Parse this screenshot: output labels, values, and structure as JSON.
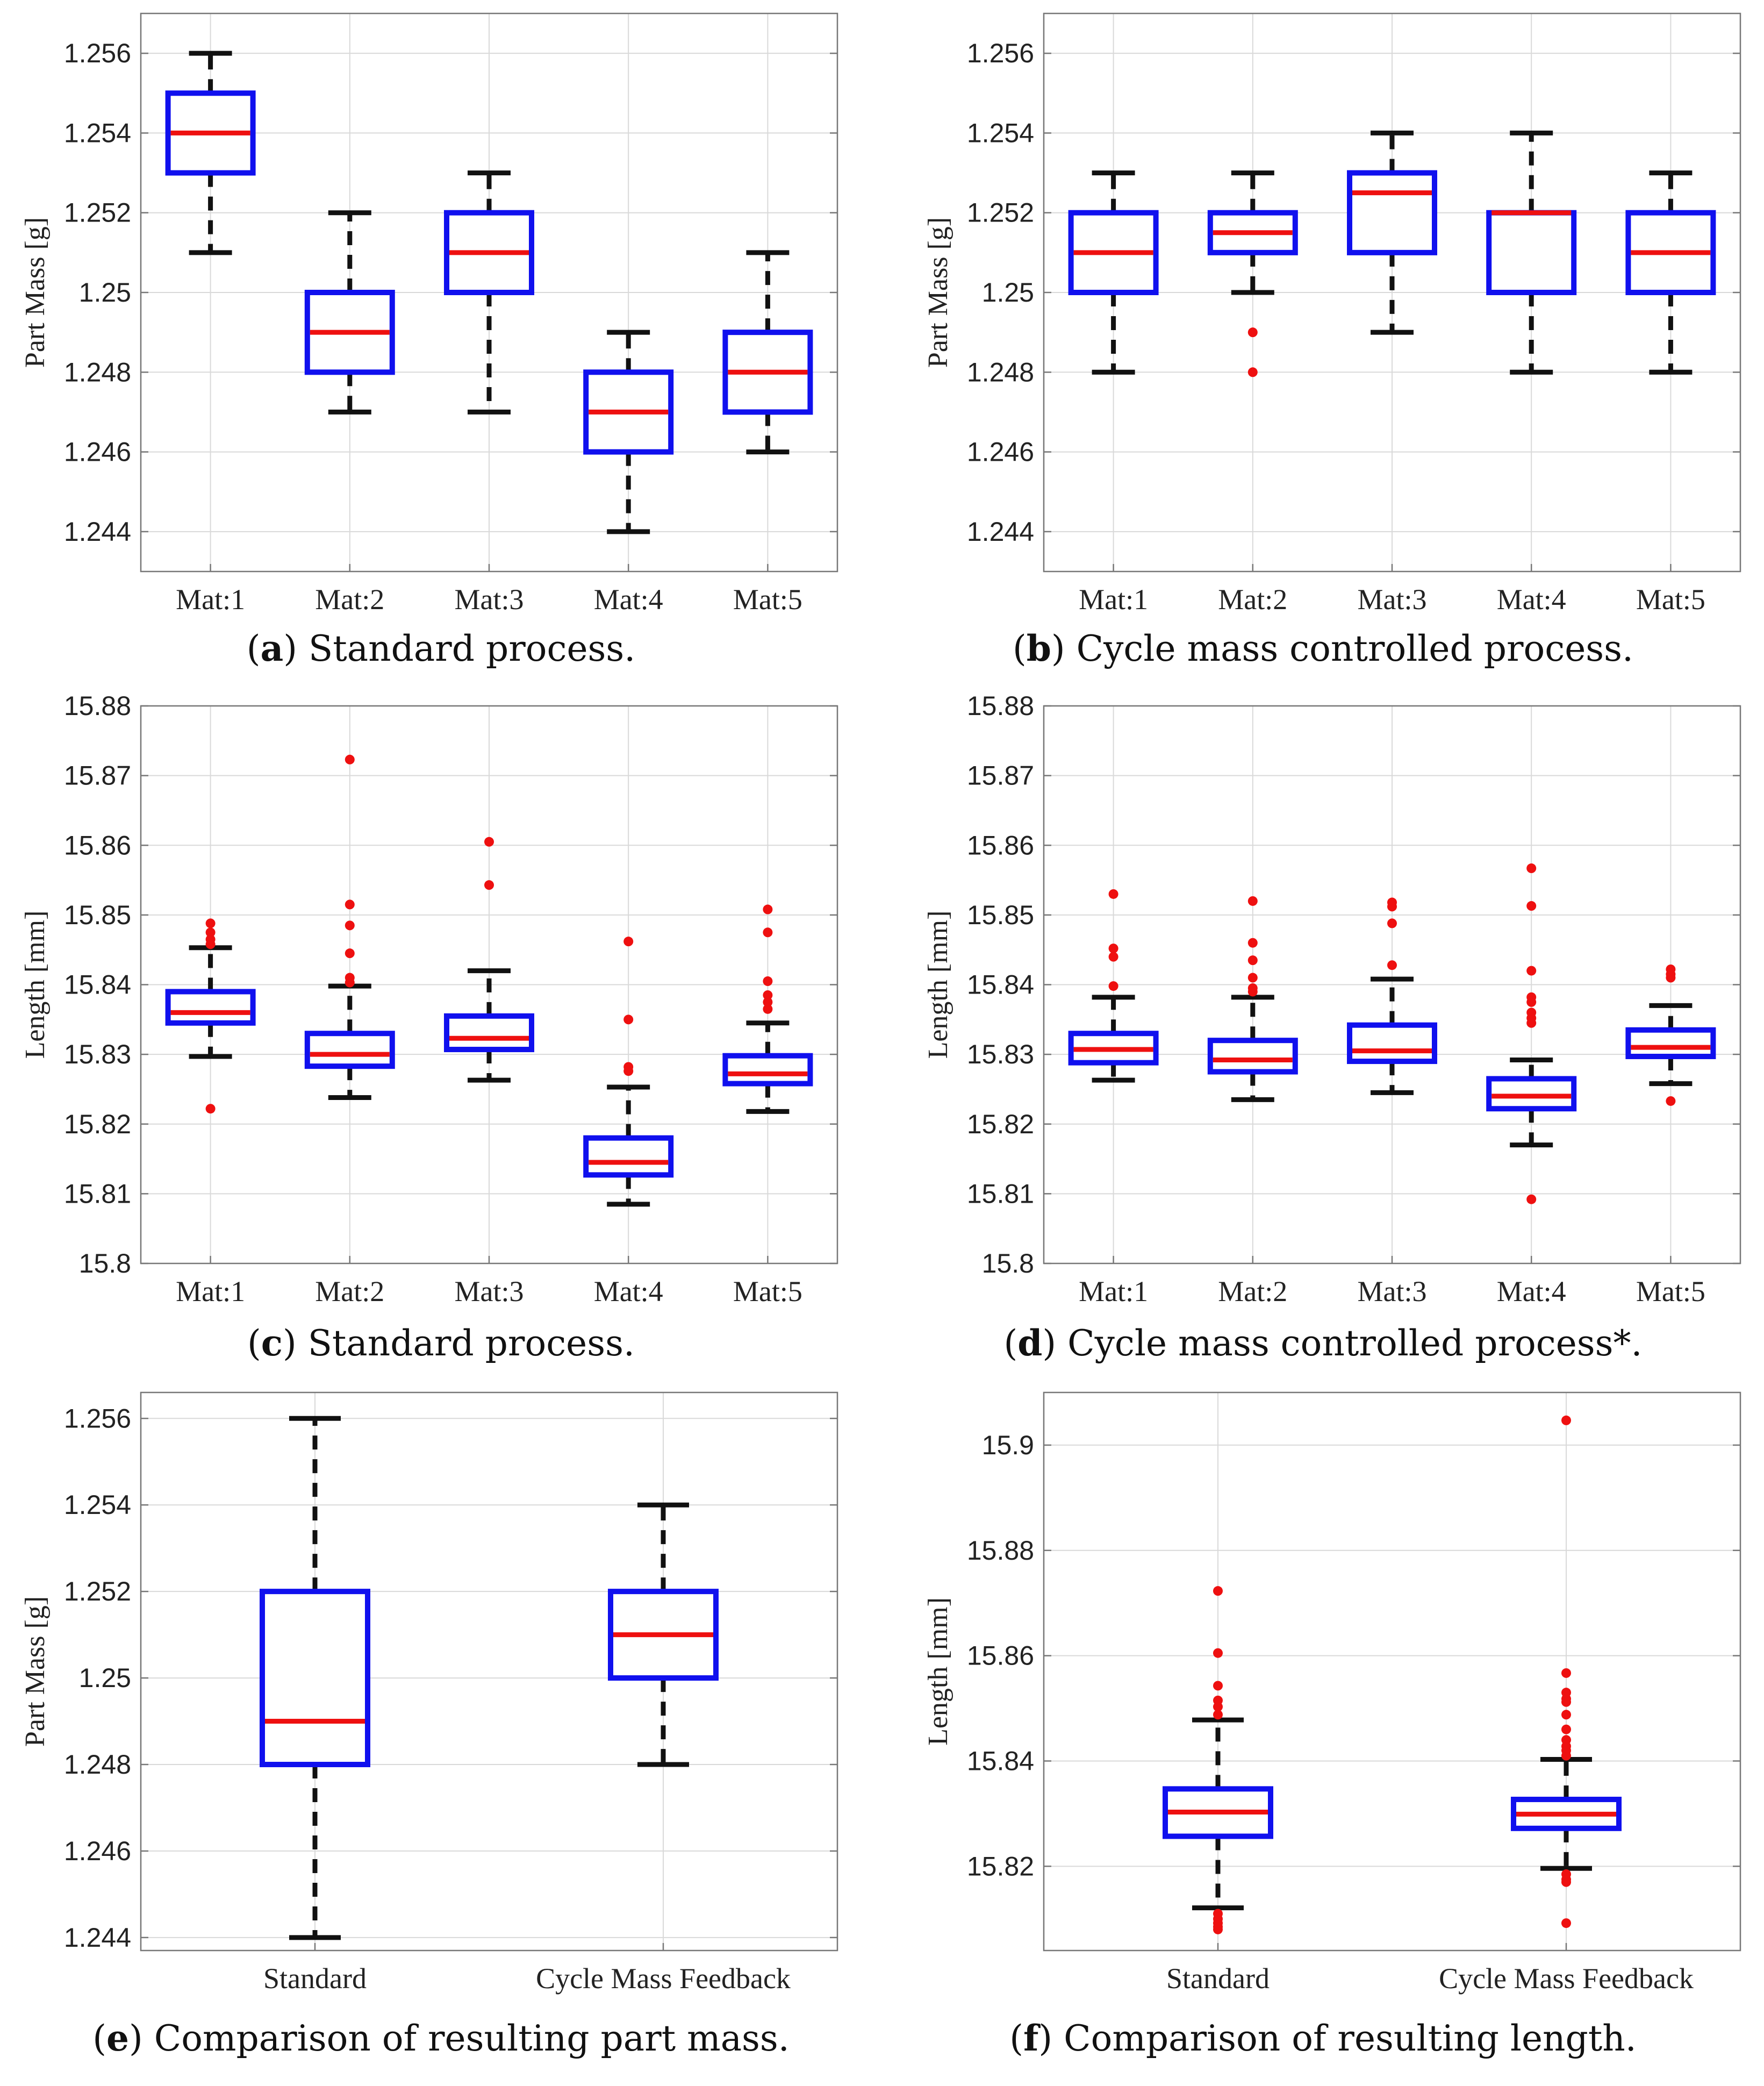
{
  "colors": {
    "box": "#1010ee",
    "median": "#ee1010",
    "whisker": "#111111",
    "outlier": "#ee1010",
    "grid": "#d9d9d9",
    "axes": "#777777"
  },
  "chart_data": [
    {
      "id": "a",
      "type": "boxplot",
      "caption_letter": "a",
      "caption_text": " Standard process.",
      "ylabel": "Part Mass [g]",
      "ylim": [
        1.243,
        1.257
      ],
      "yticks": [
        1.244,
        1.246,
        1.248,
        1.25,
        1.252,
        1.254,
        1.256
      ],
      "ytick_labels": [
        "1.244",
        "1.246",
        "1.248",
        "1.25",
        "1.252",
        "1.254",
        "1.256"
      ],
      "categories": [
        "Mat:1",
        "Mat:2",
        "Mat:3",
        "Mat:4",
        "Mat:5"
      ],
      "boxes": [
        {
          "whisker_low": 1.251,
          "q1": 1.253,
          "median": 1.254,
          "q3": 1.255,
          "whisker_high": 1.256,
          "outliers": []
        },
        {
          "whisker_low": 1.247,
          "q1": 1.248,
          "median": 1.249,
          "q3": 1.25,
          "whisker_high": 1.252,
          "outliers": []
        },
        {
          "whisker_low": 1.247,
          "q1": 1.25,
          "median": 1.251,
          "q3": 1.252,
          "whisker_high": 1.253,
          "outliers": []
        },
        {
          "whisker_low": 1.244,
          "q1": 1.246,
          "median": 1.247,
          "q3": 1.248,
          "whisker_high": 1.249,
          "outliers": []
        },
        {
          "whisker_low": 1.246,
          "q1": 1.247,
          "median": 1.248,
          "q3": 1.249,
          "whisker_high": 1.251,
          "outliers": []
        }
      ]
    },
    {
      "id": "b",
      "type": "boxplot",
      "caption_letter": "b",
      "caption_text": " Cycle mass controlled process.",
      "ylabel": "Part Mass [g]",
      "ylim": [
        1.243,
        1.257
      ],
      "yticks": [
        1.244,
        1.246,
        1.248,
        1.25,
        1.252,
        1.254,
        1.256
      ],
      "ytick_labels": [
        "1.244",
        "1.246",
        "1.248",
        "1.25",
        "1.252",
        "1.254",
        "1.256"
      ],
      "categories": [
        "Mat:1",
        "Mat:2",
        "Mat:3",
        "Mat:4",
        "Mat:5"
      ],
      "boxes": [
        {
          "whisker_low": 1.248,
          "q1": 1.25,
          "median": 1.251,
          "q3": 1.252,
          "whisker_high": 1.253,
          "outliers": []
        },
        {
          "whisker_low": 1.25,
          "q1": 1.251,
          "median": 1.2515,
          "q3": 1.252,
          "whisker_high": 1.253,
          "outliers": [
            1.249,
            1.248
          ]
        },
        {
          "whisker_low": 1.249,
          "q1": 1.251,
          "median": 1.2525,
          "q3": 1.253,
          "whisker_high": 1.254,
          "outliers": []
        },
        {
          "whisker_low": 1.248,
          "q1": 1.25,
          "median": 1.252,
          "q3": 1.252,
          "whisker_high": 1.254,
          "outliers": []
        },
        {
          "whisker_low": 1.248,
          "q1": 1.25,
          "median": 1.251,
          "q3": 1.252,
          "whisker_high": 1.253,
          "outliers": []
        }
      ]
    },
    {
      "id": "c",
      "type": "boxplot",
      "caption_letter": "c",
      "caption_text": " Standard process.",
      "ylabel": "Length [mm]",
      "ylim": [
        15.8,
        15.88
      ],
      "yticks": [
        15.8,
        15.81,
        15.82,
        15.83,
        15.84,
        15.85,
        15.86,
        15.87,
        15.88
      ],
      "ytick_labels": [
        "15.8",
        "15.81",
        "15.82",
        "15.83",
        "15.84",
        "15.85",
        "15.86",
        "15.87",
        "15.88"
      ],
      "categories": [
        "Mat:1",
        "Mat:2",
        "Mat:3",
        "Mat:4",
        "Mat:5"
      ],
      "boxes": [
        {
          "whisker_low": 15.8297,
          "q1": 15.8345,
          "median": 15.836,
          "q3": 15.839,
          "whisker_high": 15.8453,
          "outliers": [
            15.8488,
            15.8475,
            15.8465,
            15.8458,
            15.8222
          ]
        },
        {
          "whisker_low": 15.8238,
          "q1": 15.8283,
          "median": 15.83,
          "q3": 15.833,
          "whisker_high": 15.8398,
          "outliers": [
            15.8723,
            15.8515,
            15.8485,
            15.8445,
            15.841,
            15.8403
          ]
        },
        {
          "whisker_low": 15.8263,
          "q1": 15.8307,
          "median": 15.8323,
          "q3": 15.8355,
          "whisker_high": 15.842,
          "outliers": [
            15.8605,
            15.8543
          ]
        },
        {
          "whisker_low": 15.8085,
          "q1": 15.8127,
          "median": 15.8145,
          "q3": 15.818,
          "whisker_high": 15.8253,
          "outliers": [
            15.8462,
            15.835,
            15.8282,
            15.8276
          ]
        },
        {
          "whisker_low": 15.8218,
          "q1": 15.8258,
          "median": 15.8272,
          "q3": 15.8298,
          "whisker_high": 15.8345,
          "outliers": [
            15.8508,
            15.8475,
            15.8405,
            15.8385,
            15.8375,
            15.8365
          ]
        }
      ]
    },
    {
      "id": "d",
      "type": "boxplot",
      "caption_letter": "d",
      "caption_text": " Cycle mass controlled process*.",
      "ylabel": "Length [mm]",
      "ylim": [
        15.8,
        15.88
      ],
      "yticks": [
        15.8,
        15.81,
        15.82,
        15.83,
        15.84,
        15.85,
        15.86,
        15.87,
        15.88
      ],
      "ytick_labels": [
        "15.8",
        "15.81",
        "15.82",
        "15.83",
        "15.84",
        "15.85",
        "15.86",
        "15.87",
        "15.88"
      ],
      "categories": [
        "Mat:1",
        "Mat:2",
        "Mat:3",
        "Mat:4",
        "Mat:5"
      ],
      "boxes": [
        {
          "whisker_low": 15.8263,
          "q1": 15.8288,
          "median": 15.8307,
          "q3": 15.833,
          "whisker_high": 15.8382,
          "outliers": [
            15.853,
            15.8452,
            15.844,
            15.8398
          ]
        },
        {
          "whisker_low": 15.8235,
          "q1": 15.8275,
          "median": 15.8292,
          "q3": 15.832,
          "whisker_high": 15.8382,
          "outliers": [
            15.852,
            15.846,
            15.8435,
            15.841,
            15.8395,
            15.839
          ]
        },
        {
          "whisker_low": 15.8245,
          "q1": 15.829,
          "median": 15.8305,
          "q3": 15.8342,
          "whisker_high": 15.8408,
          "outliers": [
            15.8518,
            15.8512,
            15.8488,
            15.8428
          ]
        },
        {
          "whisker_low": 15.817,
          "q1": 15.8222,
          "median": 15.824,
          "q3": 15.8265,
          "whisker_high": 15.8292,
          "outliers": [
            15.8567,
            15.8513,
            15.842,
            15.8382,
            15.8375,
            15.836,
            15.8352,
            15.8345,
            15.8092
          ]
        },
        {
          "whisker_low": 15.8258,
          "q1": 15.8297,
          "median": 15.831,
          "q3": 15.8335,
          "whisker_high": 15.837,
          "outliers": [
            15.8422,
            15.8415,
            15.841,
            15.8233
          ]
        }
      ]
    },
    {
      "id": "e",
      "type": "boxplot",
      "caption_letter": "e",
      "caption_text": " Comparison of resulting part mass.",
      "ylabel": "Part Mass [g]",
      "ylim": [
        1.2437,
        1.2566
      ],
      "yticks": [
        1.244,
        1.246,
        1.248,
        1.25,
        1.252,
        1.254,
        1.256
      ],
      "ytick_labels": [
        "1.244",
        "1.246",
        "1.248",
        "1.25",
        "1.252",
        "1.254",
        "1.256"
      ],
      "categories": [
        "Standard",
        "Cycle Mass Feedback"
      ],
      "boxes": [
        {
          "whisker_low": 1.244,
          "q1": 1.248,
          "median": 1.249,
          "q3": 1.252,
          "whisker_high": 1.256,
          "outliers": []
        },
        {
          "whisker_low": 1.248,
          "q1": 1.25,
          "median": 1.251,
          "q3": 1.252,
          "whisker_high": 1.254,
          "outliers": []
        }
      ]
    },
    {
      "id": "f",
      "type": "boxplot",
      "caption_letter": "f",
      "caption_text": " Comparison of resulting length.",
      "ylabel": "Length [mm]",
      "ylim": [
        15.804,
        15.91
      ],
      "yticks": [
        15.82,
        15.84,
        15.86,
        15.88,
        15.9
      ],
      "ytick_labels": [
        "15.82",
        "15.84",
        "15.86",
        "15.88",
        "15.9"
      ],
      "categories": [
        "Standard",
        "Cycle Mass Feedback"
      ],
      "boxes": [
        {
          "whisker_low": 15.8121,
          "q1": 15.8257,
          "median": 15.8303,
          "q3": 15.8347,
          "whisker_high": 15.8478,
          "outliers": [
            15.8723,
            15.8605,
            15.8543,
            15.8515,
            15.8503,
            15.8488,
            15.811,
            15.81,
            15.8092,
            15.8085,
            15.808
          ]
        },
        {
          "whisker_low": 15.8196,
          "q1": 15.8272,
          "median": 15.8299,
          "q3": 15.8327,
          "whisker_high": 15.8403,
          "outliers": [
            15.9047,
            15.8567,
            15.853,
            15.8518,
            15.8512,
            15.8488,
            15.846,
            15.844,
            15.8428,
            15.842,
            15.841,
            15.8185,
            15.8175,
            15.817,
            15.8092
          ]
        }
      ]
    }
  ]
}
